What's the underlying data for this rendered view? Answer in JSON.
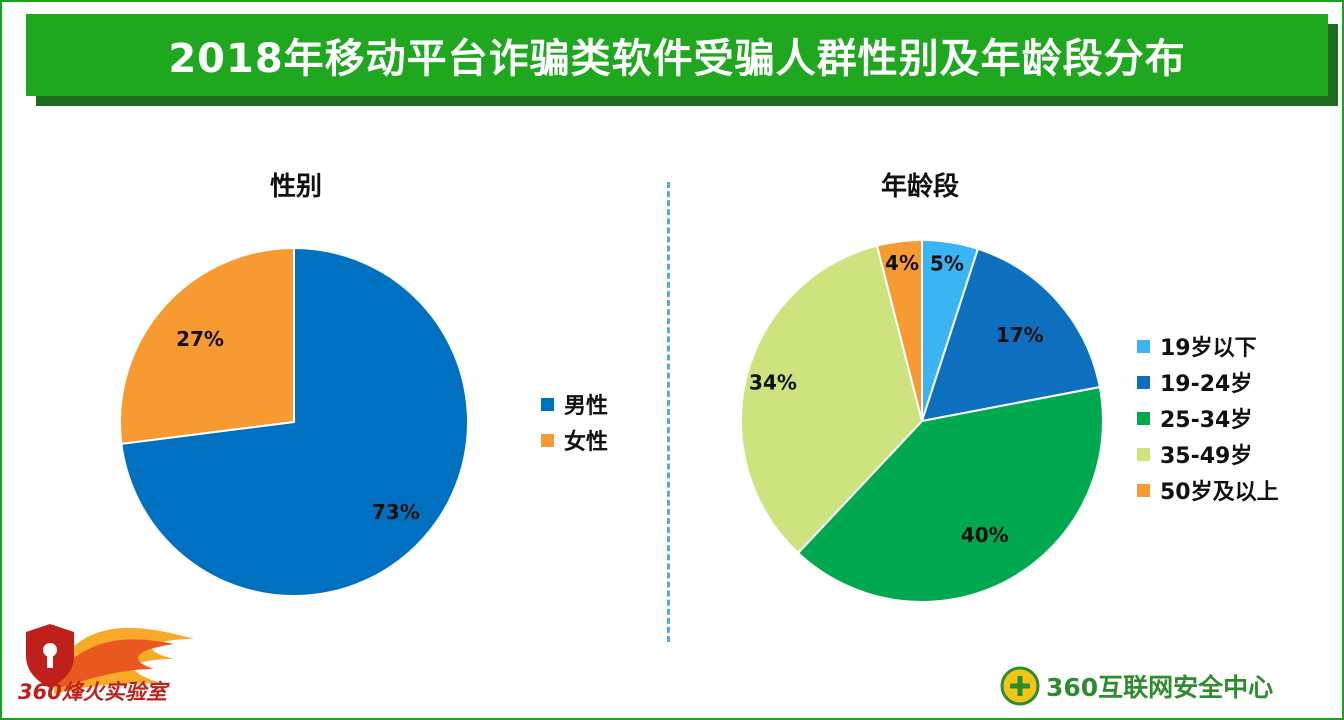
{
  "title": "2018年移动平台诈骗类软件受骗人群性别及年龄段分布",
  "logos": {
    "left": "360烽火实验室",
    "right": "360互联网安全中心"
  },
  "chart_data": [
    {
      "type": "pie",
      "title": "性别",
      "slices": [
        {
          "name": "男性",
          "value": 73,
          "label": "73%",
          "color": "#0070c0"
        },
        {
          "name": "女性",
          "value": 27,
          "label": "27%",
          "color": "#f79a32"
        }
      ],
      "legend": "right"
    },
    {
      "type": "pie",
      "title": "年龄段",
      "slices": [
        {
          "name": "19岁以下",
          "value": 5,
          "label": "5%",
          "color": "#3ab4f2"
        },
        {
          "name": "19-24岁",
          "value": 17,
          "label": "17%",
          "color": "#0f6fbf"
        },
        {
          "name": "25-34岁",
          "value": 40,
          "label": "40%",
          "color": "#00a84f"
        },
        {
          "name": "35-49岁",
          "value": 34,
          "label": "34%",
          "color": "#cde37e"
        },
        {
          "name": "50岁及以上",
          "value": 4,
          "label": "4%",
          "color": "#f79a32"
        }
      ],
      "legend": "right"
    }
  ]
}
